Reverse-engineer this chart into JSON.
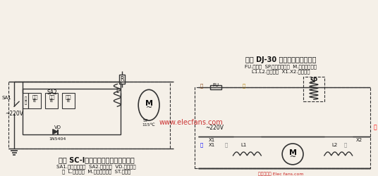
{
  "title": "新达 SC-Ⅰ型多功能食品加工机电路图",
  "title2": "得乐 DJ-30 型电动榨汁机电路图",
  "caption1_line1": "SA1.压力安全开关  SA2.调速开关  VD.整流二极",
  "caption1_line2": "管  L.定子继组  M.串激式电动机  ST.温控器",
  "caption2_line1": "FU.熔断器  SP.手动压力开关  M.串激式电动机",
  "caption2_line2": "L1.L2.定子继组  X1.X2.接线端子",
  "bg_color": "#f5f0e8",
  "line_color": "#333333",
  "text_color": "#111111",
  "watermark_color": "#cc2222"
}
